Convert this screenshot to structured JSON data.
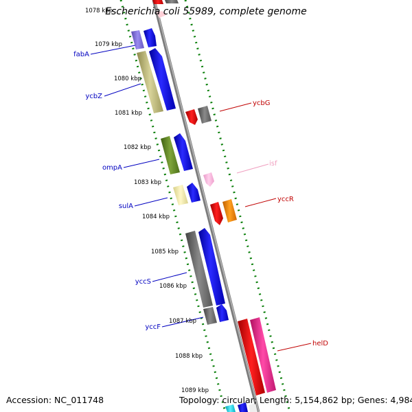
{
  "title": "Escherichia coli 55989, complete genome",
  "accession_text": "Accession: NC_011748",
  "summary_text": "Topology: circular; Length: 5,154,862 bp; Genes: 4,984",
  "kbp_ticks": [
    "1078 kbp",
    "1079 kbp",
    "1080 kbp",
    "1081 kbp",
    "1082 kbp",
    "1083 kbp",
    "1084 kbp",
    "1085 kbp",
    "1086 kbp",
    "1087 kbp",
    "1088 kbp",
    "1089 kbp"
  ],
  "left_gene_labels": [
    "fabA",
    "ycbZ",
    "ompA",
    "sulA",
    "yccS",
    "yccF"
  ],
  "right_gene_labels": [
    "ycbG",
    "isf",
    "yccR",
    "helD"
  ],
  "colors": {
    "left_label": "#0000c0",
    "right_label": "#c00000",
    "isf_label": "#f0a0c0",
    "track_dots": "#0a7f0a",
    "backbone": "#888888"
  }
}
